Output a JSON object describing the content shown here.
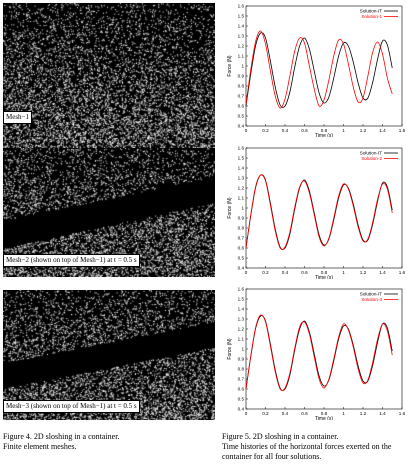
{
  "panels": [
    {
      "label": "Mesh−1",
      "density": 0.34,
      "interface": null
    },
    {
      "label": "Mesh−2 (shown on top of Mesh−1)  at t = 0.5 s",
      "density": 0.34,
      "interface": {
        "band": true,
        "y_left": [
          0.78,
          0.56
        ],
        "y_right": [
          0.42,
          0.22
        ]
      }
    },
    {
      "label": "Mesh−3 (shown on top of Mesh−1)  at t = 0.5 s",
      "density": 0.34,
      "interface": {
        "band": true,
        "y_left": [
          0.76,
          0.56
        ],
        "y_right": [
          0.44,
          0.24
        ]
      }
    }
  ],
  "chart_data": [
    {
      "type": "line",
      "xlabel": "Time (s)",
      "ylabel": "Force (N)",
      "xlim": [
        0,
        1.6
      ],
      "ylim": [
        0.4,
        1.6
      ],
      "xticks": [
        "0",
        "0.2",
        "0.4",
        "0.6",
        "0.8",
        "1",
        "1.2",
        "1.4",
        "1.6"
      ],
      "yticks": [
        "0.4",
        "0.5",
        "0.6",
        "0.7",
        "0.8",
        "0.9",
        "1",
        "1.1",
        "1.2",
        "1.3",
        "1.4",
        "1.5",
        "1.6"
      ],
      "legend_position": "top-right",
      "series": [
        {
          "name": "Solution-IT",
          "color": "#000000",
          "x": [
            0,
            0.05,
            0.1,
            0.15,
            0.2,
            0.25,
            0.3,
            0.35,
            0.4,
            0.45,
            0.5,
            0.55,
            0.6,
            0.65,
            0.7,
            0.75,
            0.8,
            0.85,
            0.9,
            0.95,
            1.0,
            1.05,
            1.1,
            1.15,
            1.2,
            1.25,
            1.3,
            1.35,
            1.4,
            1.45,
            1.5
          ],
          "y": [
            0.6,
            0.93,
            1.21,
            1.33,
            1.28,
            1.05,
            0.79,
            0.61,
            0.6,
            0.74,
            0.99,
            1.2,
            1.28,
            1.17,
            0.95,
            0.73,
            0.63,
            0.69,
            0.88,
            1.1,
            1.23,
            1.2,
            1.04,
            0.83,
            0.68,
            0.68,
            0.84,
            1.07,
            1.25,
            1.21,
            0.98
          ]
        },
        {
          "name": "Solution-1",
          "color": "#ff0000",
          "x": [
            0,
            0.05,
            0.1,
            0.15,
            0.2,
            0.25,
            0.3,
            0.35,
            0.4,
            0.45,
            0.5,
            0.55,
            0.6,
            0.65,
            0.7,
            0.75,
            0.8,
            0.85,
            0.9,
            0.95,
            1.0,
            1.05,
            1.1,
            1.15,
            1.2,
            1.25,
            1.3,
            1.35,
            1.4,
            1.45,
            1.5
          ],
          "y": [
            0.62,
            0.97,
            1.25,
            1.35,
            1.22,
            0.95,
            0.7,
            0.58,
            0.67,
            0.9,
            1.15,
            1.28,
            1.23,
            1.0,
            0.77,
            0.6,
            0.66,
            0.86,
            1.1,
            1.26,
            1.22,
            1.02,
            0.79,
            0.64,
            0.68,
            0.9,
            1.14,
            1.24,
            1.12,
            0.88,
            0.72
          ]
        }
      ]
    },
    {
      "type": "line",
      "xlabel": "Time (s)",
      "ylabel": "Force (N)",
      "xlim": [
        0,
        1.6
      ],
      "ylim": [
        0.4,
        1.6
      ],
      "xticks": [
        "0",
        "0.2",
        "0.4",
        "0.6",
        "0.8",
        "1",
        "1.2",
        "1.4",
        "1.6"
      ],
      "yticks": [
        "0.4",
        "0.5",
        "0.6",
        "0.7",
        "0.8",
        "0.9",
        "1",
        "1.1",
        "1.2",
        "1.3",
        "1.4",
        "1.5",
        "1.6"
      ],
      "legend_position": "top-right",
      "series": [
        {
          "name": "Solution-IT",
          "color": "#000000",
          "x": [
            0,
            0.05,
            0.1,
            0.15,
            0.2,
            0.25,
            0.3,
            0.35,
            0.4,
            0.45,
            0.5,
            0.55,
            0.6,
            0.65,
            0.7,
            0.75,
            0.8,
            0.85,
            0.9,
            0.95,
            1.0,
            1.05,
            1.1,
            1.15,
            1.2,
            1.25,
            1.3,
            1.35,
            1.4,
            1.45,
            1.5
          ],
          "y": [
            0.6,
            0.93,
            1.21,
            1.33,
            1.28,
            1.05,
            0.79,
            0.61,
            0.6,
            0.74,
            0.99,
            1.2,
            1.28,
            1.17,
            0.95,
            0.73,
            0.63,
            0.69,
            0.88,
            1.1,
            1.23,
            1.2,
            1.04,
            0.83,
            0.68,
            0.68,
            0.84,
            1.07,
            1.25,
            1.21,
            0.98
          ]
        },
        {
          "name": "Solution-2",
          "color": "#ff0000",
          "x": [
            0,
            0.05,
            0.1,
            0.15,
            0.2,
            0.25,
            0.3,
            0.35,
            0.4,
            0.45,
            0.5,
            0.55,
            0.6,
            0.65,
            0.7,
            0.75,
            0.8,
            0.85,
            0.9,
            0.95,
            1.0,
            1.05,
            1.1,
            1.15,
            1.2,
            1.25,
            1.3,
            1.35,
            1.4,
            1.45,
            1.5
          ],
          "y": [
            0.6,
            0.94,
            1.22,
            1.33,
            1.27,
            1.03,
            0.77,
            0.6,
            0.61,
            0.76,
            1.01,
            1.21,
            1.27,
            1.15,
            0.93,
            0.71,
            0.62,
            0.7,
            0.9,
            1.12,
            1.24,
            1.19,
            1.02,
            0.81,
            0.67,
            0.69,
            0.86,
            1.09,
            1.24,
            1.19,
            0.95
          ]
        }
      ]
    },
    {
      "type": "line",
      "xlabel": "Time (s)",
      "ylabel": "Force (N)",
      "xlim": [
        0,
        1.6
      ],
      "ylim": [
        0.4,
        1.6
      ],
      "xticks": [
        "0",
        "0.2",
        "0.4",
        "0.6",
        "0.8",
        "1",
        "1.2",
        "1.4",
        "1.6"
      ],
      "yticks": [
        "0.4",
        "0.5",
        "0.6",
        "0.7",
        "0.8",
        "0.9",
        "1",
        "1.1",
        "1.2",
        "1.3",
        "1.4",
        "1.5",
        "1.6"
      ],
      "legend_position": "top-right",
      "series": [
        {
          "name": "Solution-IT",
          "color": "#000000",
          "x": [
            0,
            0.05,
            0.1,
            0.15,
            0.2,
            0.25,
            0.3,
            0.35,
            0.4,
            0.45,
            0.5,
            0.55,
            0.6,
            0.65,
            0.7,
            0.75,
            0.8,
            0.85,
            0.9,
            0.95,
            1.0,
            1.05,
            1.1,
            1.15,
            1.2,
            1.25,
            1.3,
            1.35,
            1.4,
            1.45,
            1.5
          ],
          "y": [
            0.6,
            0.93,
            1.21,
            1.33,
            1.28,
            1.05,
            0.79,
            0.61,
            0.6,
            0.74,
            0.99,
            1.2,
            1.28,
            1.17,
            0.95,
            0.73,
            0.63,
            0.69,
            0.88,
            1.1,
            1.23,
            1.2,
            1.04,
            0.83,
            0.68,
            0.68,
            0.84,
            1.07,
            1.25,
            1.21,
            0.98
          ]
        },
        {
          "name": "Solution-3",
          "color": "#ff0000",
          "x": [
            0,
            0.05,
            0.1,
            0.15,
            0.2,
            0.25,
            0.3,
            0.35,
            0.4,
            0.45,
            0.5,
            0.55,
            0.6,
            0.65,
            0.7,
            0.75,
            0.8,
            0.85,
            0.9,
            0.95,
            1.0,
            1.05,
            1.1,
            1.15,
            1.2,
            1.25,
            1.3,
            1.35,
            1.4,
            1.45,
            1.5
          ],
          "y": [
            0.6,
            0.94,
            1.22,
            1.34,
            1.27,
            1.03,
            0.77,
            0.6,
            0.61,
            0.76,
            1.01,
            1.22,
            1.27,
            1.15,
            0.92,
            0.7,
            0.61,
            0.7,
            0.9,
            1.12,
            1.25,
            1.19,
            1.02,
            0.8,
            0.66,
            0.69,
            0.87,
            1.1,
            1.25,
            1.18,
            0.94
          ]
        }
      ]
    }
  ],
  "captions": {
    "left": {
      "title": "Figure 4. 2D sloshing in a container.",
      "body": "Finite element meshes."
    },
    "right": {
      "title": "Figure 5. 2D sloshing in a container.",
      "body": "Time histories of the horizontal forces exerted on the container for all four solutions."
    }
  }
}
